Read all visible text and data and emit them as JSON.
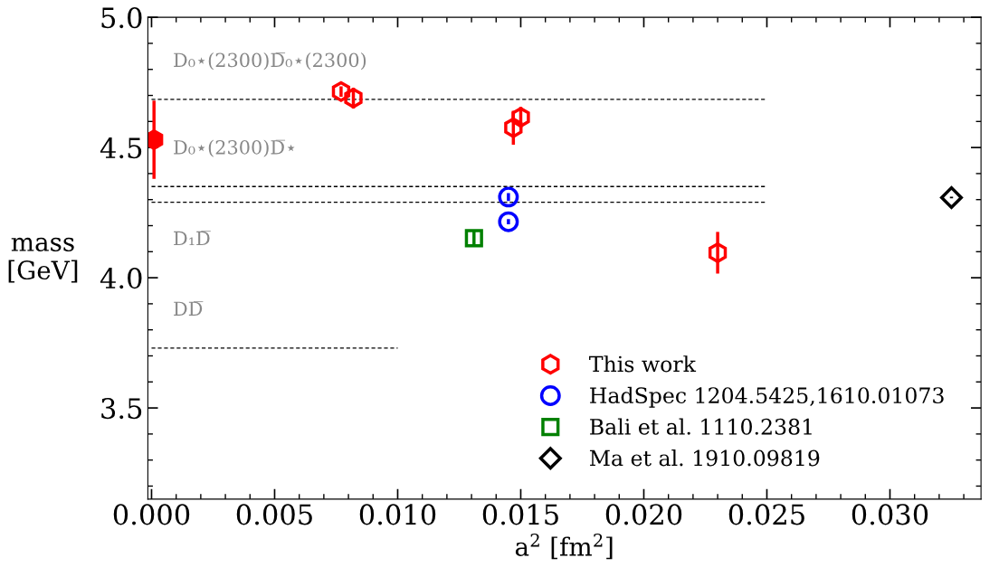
{
  "chart_data": {
    "type": "scatter",
    "xlabel": "a$^{2}$ [fm$^{2}$]",
    "ylabel": "mass\n[GeV]",
    "xlim": [
      -0.00015,
      0.0337
    ],
    "ylim": [
      3.15,
      5.0
    ],
    "xticks": [
      {
        "value": 0,
        "label": "0.000"
      },
      {
        "value": 0.005,
        "label": "0.005"
      },
      {
        "value": 0.01,
        "label": "0.010"
      },
      {
        "value": 0.015,
        "label": "0.015"
      },
      {
        "value": 0.02,
        "label": "0.020"
      },
      {
        "value": 0.025,
        "label": "0.025"
      },
      {
        "value": 0.03,
        "label": "0.030"
      }
    ],
    "yticks": [
      {
        "value": 3.5,
        "label": "3.5"
      },
      {
        "value": 4.0,
        "label": "4.0"
      },
      {
        "value": 4.5,
        "label": "4.5"
      },
      {
        "value": 5.0,
        "label": "5.0"
      }
    ],
    "legend": "bottom right",
    "grid": false,
    "series": [
      {
        "type": "line",
        "x": [
          0,
          0.025
        ],
        "values": [
          4.685,
          4.685
        ],
        "color": "#000000",
        "line_style": "dashed",
        "marker": "none"
      },
      {
        "type": "line",
        "x": [
          0,
          0.025
        ],
        "values": [
          4.35,
          4.35
        ],
        "color": "#000000",
        "line_style": "dashed",
        "marker": "none"
      },
      {
        "type": "line",
        "x": [
          0,
          0.025
        ],
        "values": [
          4.29,
          4.29
        ],
        "color": "#000000",
        "line_style": "dashed",
        "marker": "none"
      },
      {
        "type": "line",
        "x": [
          0,
          0.01
        ],
        "values": [
          3.73,
          3.73
        ],
        "color": "#000000",
        "line_style": "dashed",
        "marker": "none"
      },
      {
        "name": "This work",
        "color": "#ff0000",
        "x": [
          0.0077,
          0.0082,
          0.0147,
          0.015,
          0.023
        ],
        "values": [
          4.715,
          4.69,
          4.576,
          4.616,
          4.096
        ],
        "errors": [
          0.02,
          0.04,
          0.065,
          0.04,
          0.08
        ]
      },
      {
        "color": "#ff0000",
        "x": [
          0.0001
        ],
        "values": [
          4.53
        ],
        "errors": [
          0.15
        ]
      },
      {
        "name": "HadSpec 1204.5425,1610.01073",
        "color": "#0000ff",
        "marker": "circle",
        "x": [
          0.0145,
          0.0145
        ],
        "values": [
          4.31,
          4.215
        ],
        "errors": [
          0.015,
          0.01
        ]
      },
      {
        "name": "Bali et al. 1110.2381",
        "color": "#008000",
        "marker": "square",
        "x": [
          0.0131
        ],
        "values": [
          4.152
        ],
        "errors": [
          0.03
        ]
      },
      {
        "name": "Ma et al. 1910.09819",
        "color": "#000000",
        "marker": "diamond",
        "x": [
          0.0325
        ],
        "values": [
          4.308
        ],
        "errors": [
          0.003
        ]
      }
    ],
    "annotations": [
      {
        "text": "D₀⋆(2300)D̅₀⋆(2300)",
        "y": 4.685
      },
      {
        "text": "D₀⋆(2300)D̅⋆",
        "y": 4.35
      },
      {
        "text": "D₁D̅",
        "y": 4.29
      },
      {
        "text": "DD̅",
        "y": 3.73
      }
    ]
  }
}
